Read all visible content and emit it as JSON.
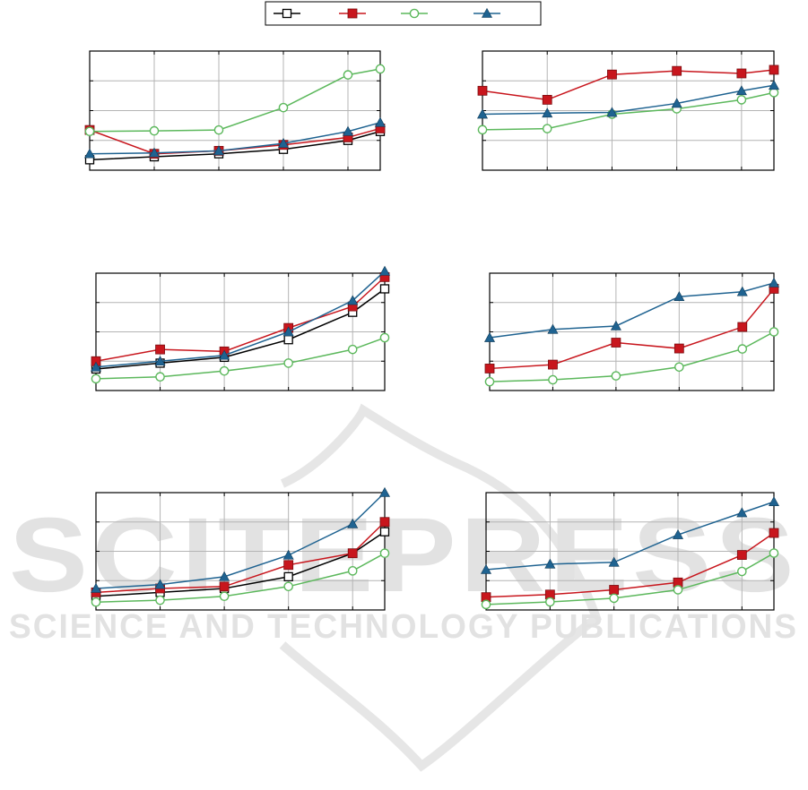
{
  "colors": {
    "black": "#000000",
    "red": "#c8161d",
    "green": "#5cb85c",
    "blue": "#1f6391",
    "grid": "#b4b4b4",
    "watermark": "#dedede"
  },
  "legend": {
    "series_names": [
      "",
      "",
      "",
      ""
    ],
    "placement": "top-center"
  },
  "watermark": {
    "line1": "SCITEPRESS",
    "line2": "SCIENCE AND TECHNOLOGY PUBLICATIONS"
  },
  "chart_data": [
    {
      "type": "line",
      "panel": "top-left",
      "x": [
        1,
        2,
        3,
        4,
        5,
        5.5
      ],
      "ylim": [
        0,
        4
      ],
      "grid": true,
      "series": [
        {
          "values": [
            0.35,
            0.45,
            0.55,
            0.7,
            1.0,
            1.3
          ],
          "color": "black",
          "marker": "square-open"
        },
        {
          "values": [
            1.35,
            0.55,
            0.65,
            0.85,
            1.1,
            1.4
          ],
          "color": "red",
          "marker": "square-filled"
        },
        {
          "values": [
            1.3,
            1.32,
            1.35,
            2.1,
            3.2,
            3.4
          ],
          "color": "green",
          "marker": "circle-open"
        },
        {
          "values": [
            0.55,
            0.58,
            0.65,
            0.9,
            1.3,
            1.6
          ],
          "color": "blue",
          "marker": "triangle-filled"
        }
      ]
    },
    {
      "type": "line",
      "panel": "top-right",
      "x": [
        1,
        2,
        3,
        4,
        5,
        5.5
      ],
      "ylim": [
        0,
        3.3
      ],
      "grid": true,
      "series": [
        {
          "values": [
            2.2,
            1.95,
            2.65,
            2.75,
            2.68,
            2.78
          ],
          "color": "red",
          "marker": "square-filled"
        },
        {
          "values": [
            1.12,
            1.15,
            1.55,
            1.7,
            1.95,
            2.15
          ],
          "color": "green",
          "marker": "circle-open"
        },
        {
          "values": [
            1.55,
            1.58,
            1.6,
            1.85,
            2.2,
            2.35
          ],
          "color": "blue",
          "marker": "triangle-filled"
        }
      ]
    },
    {
      "type": "line",
      "panel": "middle-left",
      "x": [
        1,
        2,
        3,
        4,
        5,
        5.5
      ],
      "ylim": [
        0,
        3
      ],
      "grid": true,
      "series": [
        {
          "values": [
            0.55,
            0.7,
            0.85,
            1.3,
            2.0,
            2.6
          ],
          "color": "black",
          "marker": "square-open"
        },
        {
          "values": [
            0.75,
            1.05,
            1.0,
            1.6,
            2.15,
            2.9
          ],
          "color": "red",
          "marker": "square-filled"
        },
        {
          "values": [
            0.3,
            0.35,
            0.5,
            0.7,
            1.05,
            1.35
          ],
          "color": "green",
          "marker": "circle-open"
        },
        {
          "values": [
            0.6,
            0.75,
            0.9,
            1.5,
            2.3,
            3.05
          ],
          "color": "blue",
          "marker": "triangle-filled"
        }
      ]
    },
    {
      "type": "line",
      "panel": "middle-right",
      "x": [
        1,
        2,
        3,
        4,
        5,
        5.5
      ],
      "ylim": [
        0,
        2.4
      ],
      "grid": true,
      "series": [
        {
          "values": [
            0.45,
            0.53,
            0.98,
            0.86,
            1.3,
            2.08
          ],
          "color": "red",
          "marker": "square-filled"
        },
        {
          "values": [
            0.18,
            0.22,
            0.3,
            0.48,
            0.85,
            1.2
          ],
          "color": "green",
          "marker": "circle-open"
        },
        {
          "values": [
            1.08,
            1.25,
            1.32,
            1.92,
            2.02,
            2.2
          ],
          "color": "blue",
          "marker": "triangle-filled"
        }
      ]
    },
    {
      "type": "line",
      "panel": "bottom-left",
      "x": [
        1,
        2,
        3,
        4,
        5,
        5.5
      ],
      "ylim": [
        0,
        3
      ],
      "grid": true,
      "series": [
        {
          "values": [
            0.35,
            0.45,
            0.55,
            0.85,
            1.45,
            2.0
          ],
          "color": "black",
          "marker": "square-open"
        },
        {
          "values": [
            0.45,
            0.55,
            0.6,
            1.15,
            1.45,
            2.25
          ],
          "color": "red",
          "marker": "square-filled"
        },
        {
          "values": [
            0.2,
            0.25,
            0.35,
            0.6,
            1.0,
            1.45
          ],
          "color": "green",
          "marker": "circle-open"
        },
        {
          "values": [
            0.55,
            0.65,
            0.85,
            1.4,
            2.2,
            3.0
          ],
          "color": "blue",
          "marker": "triangle-filled"
        }
      ]
    },
    {
      "type": "line",
      "panel": "bottom-right",
      "x": [
        1,
        2,
        3,
        4,
        5,
        5.5
      ],
      "ylim": [
        0,
        3.2
      ],
      "grid": true,
      "series": [
        {
          "values": [
            0.35,
            0.42,
            0.55,
            0.75,
            1.5,
            2.1
          ],
          "color": "red",
          "marker": "square-filled"
        },
        {
          "values": [
            0.15,
            0.22,
            0.32,
            0.55,
            1.05,
            1.55
          ],
          "color": "green",
          "marker": "circle-open"
        },
        {
          "values": [
            1.1,
            1.25,
            1.3,
            2.05,
            2.65,
            2.95
          ],
          "color": "blue",
          "marker": "triangle-filled"
        }
      ]
    }
  ]
}
